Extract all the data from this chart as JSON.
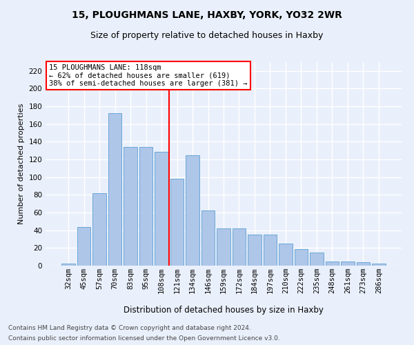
{
  "title1": "15, PLOUGHMANS LANE, HAXBY, YORK, YO32 2WR",
  "title2": "Size of property relative to detached houses in Haxby",
  "xlabel": "Distribution of detached houses by size in Haxby",
  "ylabel": "Number of detached properties",
  "categories": [
    "32sqm",
    "45sqm",
    "57sqm",
    "70sqm",
    "83sqm",
    "95sqm",
    "108sqm",
    "121sqm",
    "134sqm",
    "146sqm",
    "159sqm",
    "172sqm",
    "184sqm",
    "197sqm",
    "210sqm",
    "222sqm",
    "235sqm",
    "248sqm",
    "261sqm",
    "273sqm",
    "286sqm"
  ],
  "values": [
    2,
    44,
    82,
    172,
    134,
    134,
    129,
    98,
    125,
    62,
    42,
    42,
    35,
    35,
    25,
    19,
    15,
    5,
    5,
    4,
    2
  ],
  "bar_color": "#aec6e8",
  "bar_edge_color": "#5a9fd4",
  "vline_color": "red",
  "vline_index": 7,
  "annotation_text": "15 PLOUGHMANS LANE: 118sqm\n← 62% of detached houses are smaller (619)\n38% of semi-detached houses are larger (381) →",
  "annotation_box_color": "white",
  "annotation_box_edge_color": "red",
  "ylim": [
    0,
    230
  ],
  "yticks": [
    0,
    20,
    40,
    60,
    80,
    100,
    120,
    140,
    160,
    180,
    200,
    220
  ],
  "footnote1": "Contains HM Land Registry data © Crown copyright and database right 2024.",
  "footnote2": "Contains public sector information licensed under the Open Government Licence v3.0.",
  "background_color": "#eaf0fb",
  "grid_color": "#ffffff",
  "title1_fontsize": 10,
  "title2_fontsize": 9,
  "xlabel_fontsize": 8.5,
  "ylabel_fontsize": 8,
  "tick_fontsize": 7.5,
  "annotation_fontsize": 7.5,
  "footnote_fontsize": 6.5
}
